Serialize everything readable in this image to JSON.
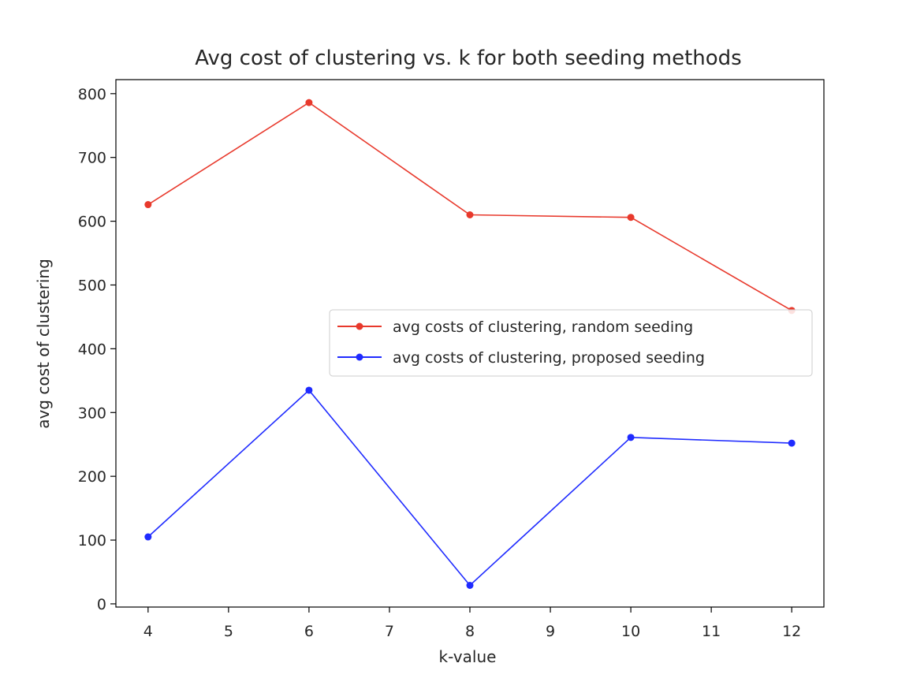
{
  "chart_data": {
    "type": "line",
    "title": "Avg cost of clustering vs. k for both seeding methods",
    "xlabel": "k-value",
    "ylabel": "avg cost of clustering",
    "x": [
      4,
      6,
      8,
      10,
      12
    ],
    "xlim": [
      3.6,
      12.4
    ],
    "ylim": [
      -5,
      822
    ],
    "xticks": [
      4,
      5,
      6,
      7,
      8,
      9,
      10,
      11,
      12
    ],
    "yticks": [
      0,
      100,
      200,
      300,
      400,
      500,
      600,
      700,
      800
    ],
    "grid": false,
    "legend_position": "center-right",
    "series": [
      {
        "name": "avg costs of clustering, random seeding",
        "color": "#e8392c",
        "marker": "circle",
        "values": [
          626,
          786,
          610,
          606,
          460
        ]
      },
      {
        "name": "avg costs of clustering, proposed seeding",
        "color": "#1f2bff",
        "marker": "circle",
        "values": [
          105,
          335,
          29,
          261,
          252
        ]
      }
    ]
  }
}
